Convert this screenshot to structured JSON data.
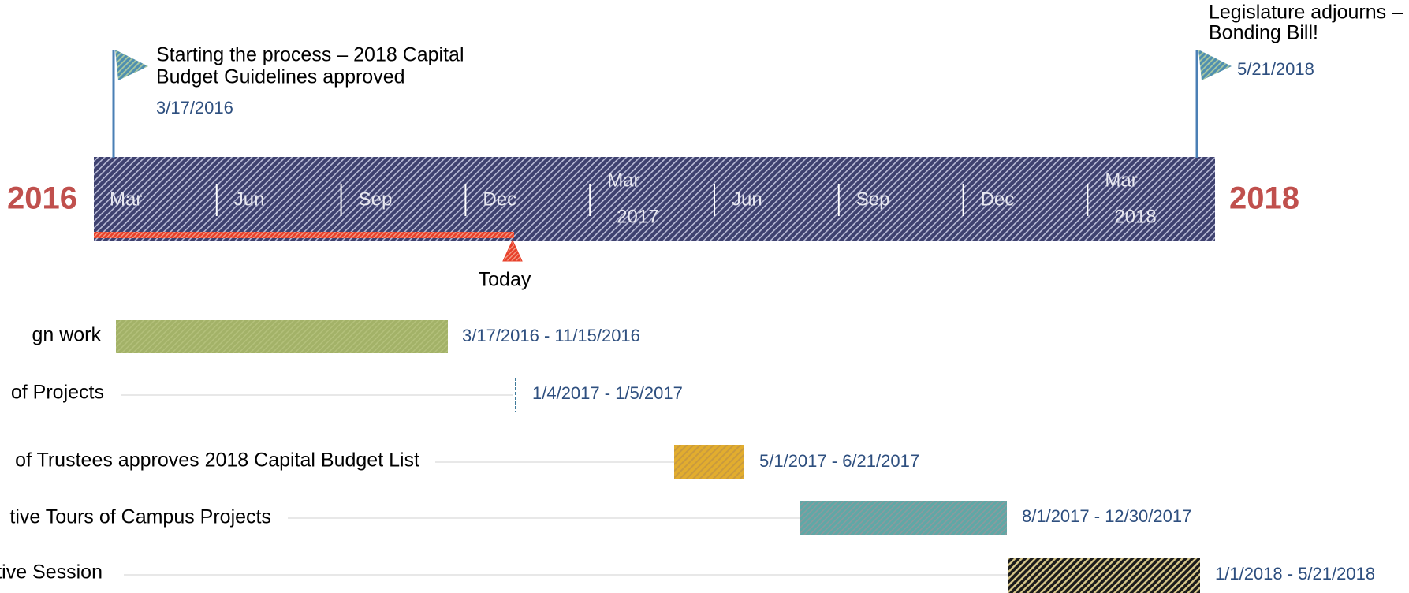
{
  "years": {
    "start": "2016",
    "end": "2018"
  },
  "months": [
    {
      "lines": [
        "Mar"
      ]
    },
    {
      "lines": [
        "Jun"
      ]
    },
    {
      "lines": [
        "Sep"
      ]
    },
    {
      "lines": [
        "Dec"
      ]
    },
    {
      "lines": [
        "Mar",
        "2017"
      ]
    },
    {
      "lines": [
        "Jun"
      ]
    },
    {
      "lines": [
        "Sep"
      ]
    },
    {
      "lines": [
        "Dec"
      ]
    },
    {
      "lines": [
        "Mar",
        "2018"
      ]
    }
  ],
  "today": "Today",
  "milestones": [
    {
      "lines": [
        "Starting the process – 2018 Capital",
        "Budget Guidelines approved"
      ],
      "date": "3/17/2016"
    },
    {
      "lines": [
        "Legislature adjourns –",
        "Bonding Bill!"
      ],
      "date": "5/21/2018"
    }
  ],
  "tasks": [
    {
      "label": "gn work",
      "dates": "3/17/2016 - 11/15/2016"
    },
    {
      "label": "of Projects",
      "dates": "1/4/2017 - 1/5/2017"
    },
    {
      "label": "of Trustees approves 2018 Capital Budget List",
      "dates": "5/1/2017 - 6/21/2017"
    },
    {
      "label": "tive Tours of Campus Projects",
      "dates": "8/1/2017 - 12/30/2017"
    },
    {
      "label": "tive Session",
      "dates": "1/1/2018 - 5/21/2018"
    }
  ]
}
